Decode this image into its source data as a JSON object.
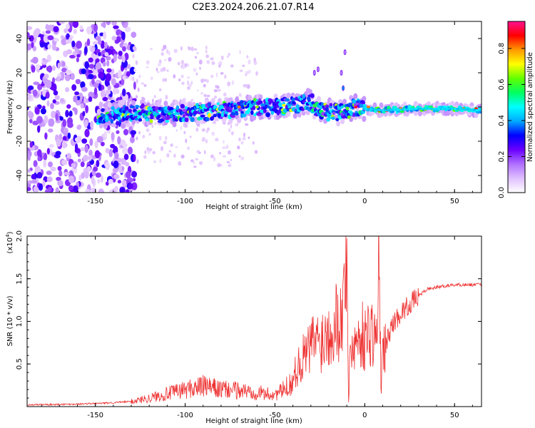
{
  "title": "C2E3.2024.206.21.07.R14",
  "chart_data": [
    {
      "type": "heatmap",
      "xlabel": "Height of straight line (km)",
      "ylabel": "Frequency (Hz)",
      "xlim": [
        -188,
        65
      ],
      "ylim": [
        -50,
        50
      ],
      "x_ticks": [
        "-150",
        "-100",
        "-50",
        "0",
        "50"
      ],
      "y_ticks": [
        "-40",
        "-20",
        "0",
        "20",
        "40"
      ],
      "x_tick_values": [
        -150,
        -100,
        -50,
        0,
        50
      ],
      "y_tick_values": [
        -40,
        -20,
        0,
        20,
        40
      ],
      "colorbar": {
        "label": "Normalized spectral amplitude",
        "range": [
          0,
          0.95
        ],
        "ticks": [
          "0.0",
          "0.2",
          "0.4",
          "0.6",
          "0.8"
        ],
        "tick_values": [
          0.0,
          0.2,
          0.4,
          0.6,
          0.8
        ],
        "colors": [
          "#ffffff",
          "#e0c0ff",
          "#b070ff",
          "#6a00ff",
          "#0000ff",
          "#00aaff",
          "#00ffff",
          "#00ff60",
          "#60ff00",
          "#ffff00",
          "#ff9900",
          "#ff0000",
          "#ff1090"
        ]
      },
      "ridge": [
        {
          "x": -145,
          "y": -5
        },
        {
          "x": -130,
          "y": -3
        },
        {
          "x": -120,
          "y": -4
        },
        {
          "x": -100,
          "y": -4
        },
        {
          "x": -90,
          "y": -3
        },
        {
          "x": -80,
          "y": -2
        },
        {
          "x": -70,
          "y": -1
        },
        {
          "x": -60,
          "y": 0
        },
        {
          "x": -50,
          "y": 0
        },
        {
          "x": -40,
          "y": 1
        },
        {
          "x": -30,
          "y": 3
        },
        {
          "x": -25,
          "y": -2
        },
        {
          "x": -20,
          "y": -3
        },
        {
          "x": -15,
          "y": -3
        },
        {
          "x": -10,
          "y": -2
        },
        {
          "x": -5,
          "y": 0
        },
        {
          "x": 0,
          "y": -1
        },
        {
          "x": 10,
          "y": -2
        },
        {
          "x": 30,
          "y": -1
        },
        {
          "x": 50,
          "y": -1
        },
        {
          "x": 65,
          "y": -2
        }
      ],
      "spikes": [
        {
          "x": -28,
          "y": 20
        },
        {
          "x": -26,
          "y": 22
        },
        {
          "x": -13,
          "y": 20
        },
        {
          "x": -12,
          "y": 11
        },
        {
          "x": -11,
          "y": 32
        }
      ]
    },
    {
      "type": "line",
      "xlabel": "Height of straight line (km)",
      "ylabel": "SNR (10 * v/v)",
      "y_multiplier": "(x10",
      "y_exponent": "4",
      "xlim": [
        -188,
        65
      ],
      "ylim": [
        0,
        2.0
      ],
      "x_ticks": [
        "-150",
        "-100",
        "-50",
        "0",
        "50"
      ],
      "y_ticks": [
        "0.5",
        "1.0",
        "1.5",
        "2.0"
      ],
      "x_tick_values": [
        -150,
        -100,
        -50,
        0,
        50
      ],
      "y_tick_values": [
        0.5,
        1.0,
        1.5,
        2.0
      ],
      "color": "#ee3333",
      "series": [
        {
          "x": [
            -188,
            -160,
            -145,
            -130,
            -120,
            -110,
            -100,
            -95,
            -90,
            -80,
            -70,
            -60,
            -52,
            -48,
            -45,
            -40,
            -38,
            -35,
            -30,
            -28,
            -25,
            -22,
            -20,
            -15,
            -13,
            -12,
            -10,
            -9,
            -8,
            -5,
            -2,
            0,
            3,
            5,
            7,
            8,
            9,
            10,
            15,
            20,
            25,
            30,
            35,
            40,
            50,
            60,
            65
          ],
          "y": [
            0.02,
            0.03,
            0.04,
            0.06,
            0.1,
            0.15,
            0.2,
            0.22,
            0.24,
            0.2,
            0.19,
            0.17,
            0.14,
            0.16,
            0.2,
            0.3,
            0.45,
            0.55,
            0.7,
            0.8,
            0.75,
            0.85,
            0.9,
            1.05,
            1.0,
            1.15,
            1.98,
            0.05,
            0.7,
            0.75,
            0.85,
            0.8,
            0.9,
            0.85,
            0.8,
            1.85,
            0.2,
            0.6,
            0.95,
            1.1,
            1.2,
            1.3,
            1.38,
            1.4,
            1.43,
            1.43,
            1.43
          ]
        }
      ]
    }
  ]
}
